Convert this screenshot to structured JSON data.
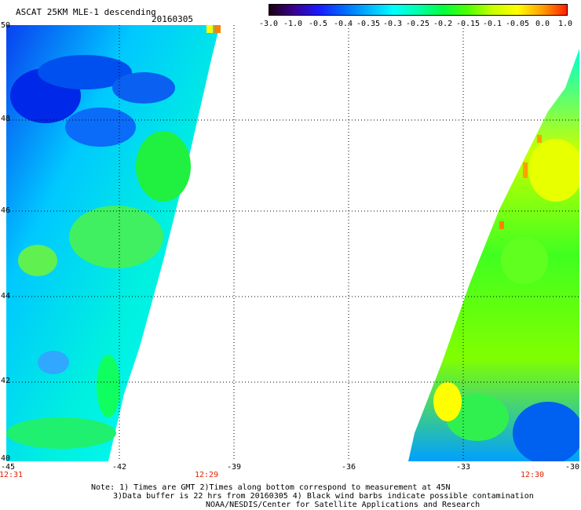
{
  "header": {
    "title": "ASCAT 25KM MLE-1 descending",
    "date": "20160305"
  },
  "colorbar": {
    "labels": [
      "-3.0",
      "-1.0",
      "-0.5",
      "-0.4",
      "-0.35",
      "-0.3",
      "-0.25",
      "-0.2",
      "-0.15",
      "-0.1",
      "-0.05",
      "0.0",
      "1.0"
    ],
    "colors": [
      "#1a0010",
      "#3a0090",
      "#1a1aff",
      "#006aff",
      "#00b4ff",
      "#00ffff",
      "#00ffaa",
      "#00ff40",
      "#50ff00",
      "#c8ff00",
      "#ffff00",
      "#ffa000",
      "#ff2000"
    ]
  },
  "map": {
    "lat_labels": [
      "50",
      "48",
      "46",
      "44",
      "42",
      "40"
    ],
    "lon_labels": [
      "-45",
      "-42",
      "-39",
      "-36",
      "-33",
      "-30"
    ],
    "time_labels": [
      "12:31",
      "12:29",
      "12:30"
    ]
  },
  "footer": {
    "line1": "Note: 1) Times are GMT 2)Times along bottom correspond to measurement at 45N",
    "line2": "3)Data buffer is 22 hrs from 20160305 4) Black wind barbs indicate possible contamination",
    "line3": "NOAA/NESDIS/Center for Satellite Applications and Research"
  }
}
